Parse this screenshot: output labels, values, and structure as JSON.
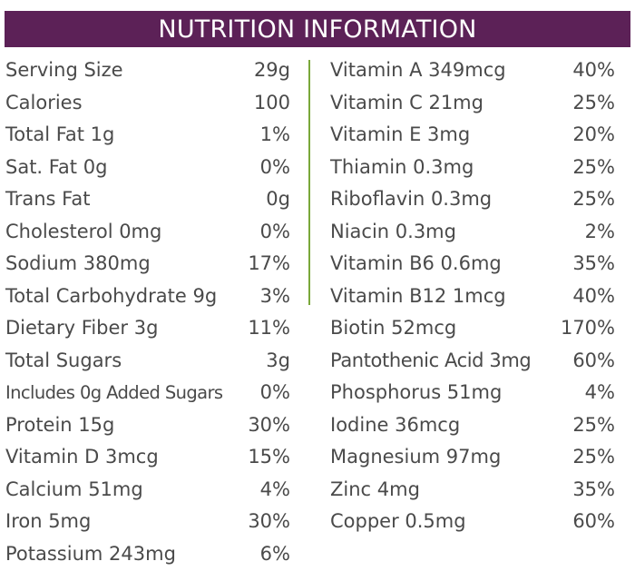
{
  "header": {
    "title": "NUTRITION INFORMATION",
    "background": "#5c2157",
    "text_color": "#ffffff"
  },
  "accent": {
    "divider_color": "#7aa83a"
  },
  "left_column": [
    {
      "label": "Serving Size",
      "value": "29g"
    },
    {
      "label": "Calories",
      "value": "100"
    },
    {
      "label": "Total Fat 1g",
      "value": "1%"
    },
    {
      "label": "Sat. Fat 0g",
      "value": "0%"
    },
    {
      "label": "Trans Fat",
      "value": "0g"
    },
    {
      "label": "Cholesterol 0mg",
      "value": "0%"
    },
    {
      "label": "Sodium 380mg",
      "value": "17%"
    },
    {
      "label": "Total Carbohydrate 9g",
      "value": "3%"
    },
    {
      "label": "Dietary Fiber 3g",
      "value": "11%"
    },
    {
      "label": "Total Sugars",
      "value": "3g"
    },
    {
      "label": "Includes 0g Added Sugars",
      "value": "0%"
    },
    {
      "label": "Protein 15g",
      "value": "30%"
    },
    {
      "label": "Vitamin D 3mcg",
      "value": "15%"
    },
    {
      "label": "Calcium 51mg",
      "value": "4%"
    },
    {
      "label": "Iron 5mg",
      "value": "30%"
    },
    {
      "label": "Potassium 243mg",
      "value": "6%"
    }
  ],
  "right_column": [
    {
      "label": "Vitamin A 349mcg",
      "value": "40%"
    },
    {
      "label": "Vitamin C 21mg",
      "value": "25%"
    },
    {
      "label": "Vitamin E 3mg",
      "value": "20%"
    },
    {
      "label": "Thiamin 0.3mg",
      "value": "25%"
    },
    {
      "label": "Riboflavin 0.3mg",
      "value": "25%"
    },
    {
      "label": "Niacin 0.3mg",
      "value": "2%"
    },
    {
      "label": "Vitamin B6 0.6mg",
      "value": "35%"
    },
    {
      "label": "Vitamin B12 1mcg",
      "value": "40%"
    },
    {
      "label": "Biotin 52mcg",
      "value": "170%"
    },
    {
      "label": "Pantothenic Acid 3mg",
      "value": "60%"
    },
    {
      "label": "Phosphorus 51mg",
      "value": "4%"
    },
    {
      "label": "Iodine 36mcg",
      "value": "25%"
    },
    {
      "label": "Magnesium 97mg",
      "value": "25%"
    },
    {
      "label": "Zinc 4mg",
      "value": "35%"
    },
    {
      "label": "Copper 0.5mg",
      "value": "60%"
    }
  ]
}
